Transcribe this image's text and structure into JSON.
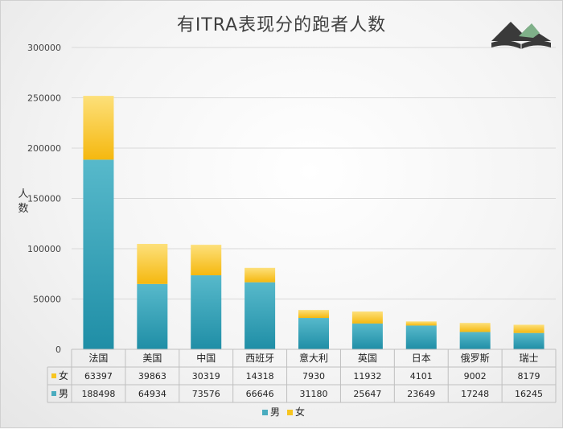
{
  "colors": {
    "male": "#4aacbf",
    "female": "#f7c520",
    "grid": "#d9d9d9"
  },
  "chart_data": {
    "type": "bar",
    "stacked": true,
    "title": "有ITRA表现分的跑者人数",
    "ylabel": "人数",
    "ylim": [
      0,
      300000
    ],
    "yticks": [
      0,
      50000,
      100000,
      150000,
      200000,
      250000,
      300000
    ],
    "categories": [
      "法国",
      "美国",
      "中国",
      "西班牙",
      "意大利",
      "英国",
      "日本",
      "俄罗斯",
      "瑞士"
    ],
    "series": [
      {
        "name": "男",
        "values": [
          188498,
          64934,
          73576,
          66646,
          31180,
          25647,
          23649,
          17248,
          16245
        ]
      },
      {
        "name": "女",
        "values": [
          63397,
          39863,
          30319,
          14318,
          7930,
          11932,
          4101,
          9002,
          8179
        ]
      }
    ],
    "data_table": true,
    "legend_position": "bottom",
    "grid": true
  },
  "logo": {
    "icon": "mountain-book-logo"
  }
}
